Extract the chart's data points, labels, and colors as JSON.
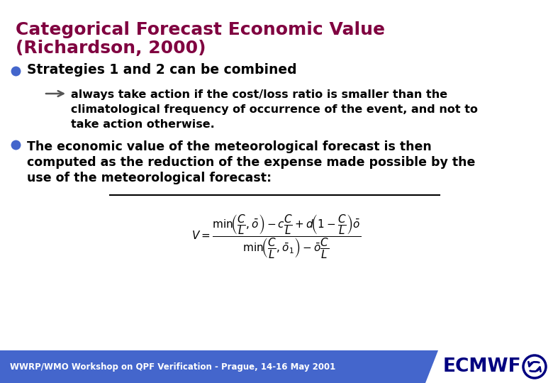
{
  "title_line1": "Categorical Forecast Economic Value",
  "title_line2": "(Richardson, 2000)",
  "title_color": "#800040",
  "bg_color": "#ffffff",
  "bullet_color": "#4466cc",
  "bullet1": "Strategies 1 and 2 can be combined",
  "arrow_text_line1": "always take action if the cost/loss ratio is smaller than the",
  "arrow_text_line2": "climatological frequency of occurrence of the event, and not to",
  "arrow_text_line3": "take action otherwise.",
  "bullet2_line1": "The economic value of the meteorological forecast is then",
  "bullet2_line2": "computed as the reduction of the expense made possible by the",
  "bullet2_line3": "use of the meteorological forecast:",
  "footer_text": "WWRP/WMO Workshop on QPF Verification - Prague, 14-16 May 2001",
  "footer_bg": "#4466cc",
  "footer_text_color": "#ffffff",
  "ecmwf_color": "#000080"
}
